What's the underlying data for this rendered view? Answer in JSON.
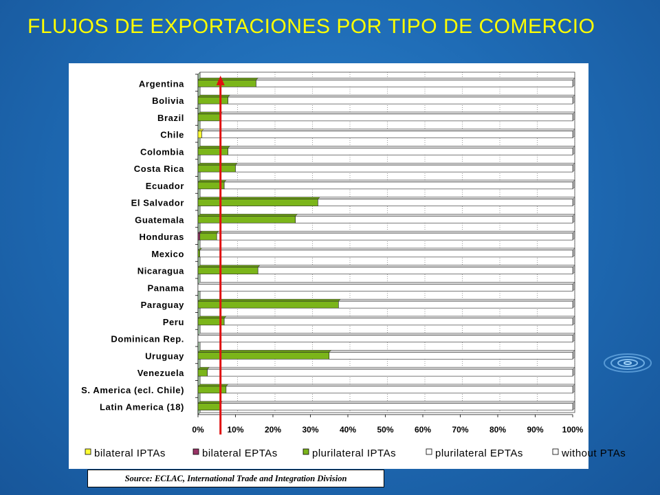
{
  "page": {
    "title": "FLUJOS DE EXPORTACIONES POR TIPO DE COMERCIO",
    "source": "Source: ECLAC, International Trade and Integration Division"
  },
  "colors": {
    "bilateral_IPTAs": "#ffff33",
    "bilateral_EPTAs": "#993366",
    "plurilateral_IPTAs": "#7bb51a",
    "plurilateral_EPTAs": "#ffffff",
    "without_PTAs": "#ffffff",
    "arrow": "#e01010"
  },
  "chart_data": {
    "type": "bar",
    "orientation": "horizontal",
    "stacked": "percent",
    "categories": [
      "Argentina",
      "Bolivia",
      "Brazil",
      "Chile",
      "Colombia",
      "Costa Rica",
      "Ecuador",
      "El Salvador",
      "Guatemala",
      "Honduras",
      "Mexico",
      "Nicaragua",
      "Panama",
      "Paraguay",
      "Peru",
      "Dominican Rep.",
      "Uruguay",
      "Venezuela",
      "S. America (ecl. Chile)",
      "Latin America (18)"
    ],
    "series": [
      {
        "name": "bilateral IPTAs",
        "values": [
          0,
          0,
          0,
          1,
          0,
          0,
          0,
          0,
          0,
          0,
          0,
          0,
          0,
          0,
          0,
          0,
          0,
          0,
          0,
          0
        ]
      },
      {
        "name": "bilateral EPTAs",
        "values": [
          0,
          0,
          0,
          0,
          0,
          0,
          0,
          0,
          0,
          0.5,
          0,
          0,
          0,
          0,
          0,
          0,
          0,
          0,
          0,
          0
        ]
      },
      {
        "name": "plurilateral IPTAs",
        "values": [
          15.5,
          8,
          6,
          0,
          8,
          10,
          7,
          32,
          26,
          4.5,
          0.5,
          16,
          0,
          37.5,
          7,
          0,
          35,
          2.5,
          7.5,
          6
        ]
      },
      {
        "name": "plurilateral EPTAs",
        "values": [
          0,
          0,
          0,
          0,
          0,
          0,
          0,
          0,
          0,
          0,
          0,
          0,
          0,
          0,
          0,
          0,
          0,
          0,
          0,
          0
        ]
      },
      {
        "name": "without PTAs",
        "values": [
          84.5,
          92,
          94,
          99,
          92,
          90,
          93,
          68,
          74,
          95,
          99.5,
          84,
          100,
          62.5,
          93,
          100,
          65,
          97.5,
          92.5,
          94
        ]
      }
    ],
    "xticks": [
      "0%",
      "10%",
      "20%",
      "30%",
      "40%",
      "50%",
      "60%",
      "70%",
      "80%",
      "90%",
      "100%"
    ],
    "xlim": [
      0,
      100
    ],
    "legend": "bottom",
    "grid": true,
    "annotation": {
      "type": "vertical-arrow",
      "x": 6
    }
  }
}
